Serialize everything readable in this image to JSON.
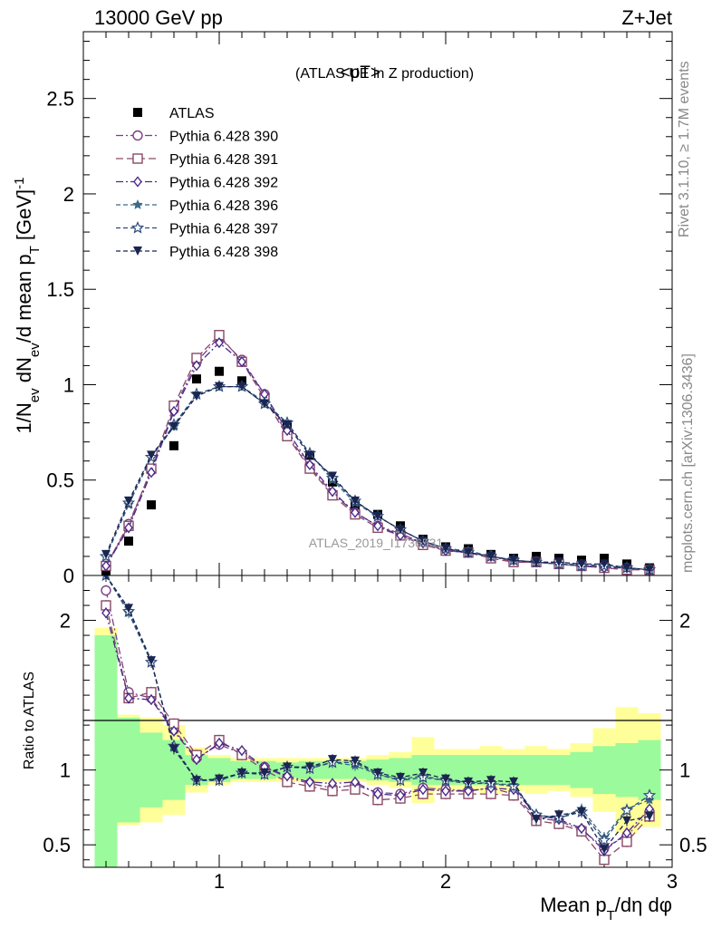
{
  "header": {
    "left": "13000 GeV pp",
    "right": "Z+Jet"
  },
  "side_labels": {
    "rivet": "Rivet 3.1.10, ≥ 1.7M events",
    "mcplots": "mcplots.cern.ch [arXiv:1306.3436]"
  },
  "watermark": "ATLAS_2019_I1736531",
  "colors": {
    "band_inner": "#9bfa9b",
    "band_outer": "#ffff99",
    "data": "#000000"
  },
  "chart_data": [
    {
      "type": "scatter",
      "title": "<pT>",
      "subtitle": "(ATLAS UE in Z production)",
      "xlabel": "Mean p_T/dη dφ",
      "ylabel": "1/N_ev dN_ev/d mean p_T [GeV]^-1",
      "xlim": [
        0.4,
        3.0
      ],
      "ylim": [
        0,
        2.85
      ],
      "xticks": [
        "1",
        "2",
        "3"
      ],
      "yticks": [
        "0",
        "0.5",
        "1",
        "1.5",
        "2",
        "2.5"
      ],
      "x": [
        0.5,
        0.6,
        0.7,
        0.8,
        0.9,
        1.0,
        1.1,
        1.2,
        1.3,
        1.4,
        1.5,
        1.6,
        1.7,
        1.8,
        1.9,
        2.0,
        2.1,
        2.2,
        2.3,
        2.4,
        2.5,
        2.6,
        2.7,
        2.8,
        2.9
      ],
      "legend": [
        "ATLAS",
        "Pythia 6.428 390",
        "Pythia 6.428 391",
        "Pythia 6.428 392",
        "Pythia 6.428 396",
        "Pythia 6.428 397",
        "Pythia 6.428 398"
      ],
      "series": [
        {
          "name": "ATLAS",
          "color": "#000000",
          "marker": "square-filled",
          "values": [
            0.02,
            0.18,
            0.37,
            0.68,
            1.03,
            1.07,
            1.02,
            0.93,
            0.79,
            0.63,
            0.49,
            0.37,
            0.32,
            0.26,
            0.19,
            0.15,
            0.14,
            0.11,
            0.09,
            0.1,
            0.09,
            0.08,
            0.09,
            0.06,
            0.04
          ]
        },
        {
          "name": "Pythia 6.428 390",
          "color": "#7b3f86",
          "marker": "circle-open",
          "dash": "8,3,2,3",
          "values": [
            0.05,
            0.27,
            0.55,
            0.87,
            1.12,
            1.25,
            1.13,
            0.95,
            0.74,
            0.57,
            0.43,
            0.33,
            0.26,
            0.22,
            0.17,
            0.13,
            0.12,
            0.1,
            0.07,
            0.07,
            0.06,
            0.05,
            0.05,
            0.04,
            0.03
          ]
        },
        {
          "name": "Pythia 6.428 391",
          "color": "#8a4a66",
          "marker": "square-open",
          "dash": "8,4",
          "values": [
            0.05,
            0.26,
            0.56,
            0.89,
            1.14,
            1.26,
            1.12,
            0.93,
            0.73,
            0.56,
            0.42,
            0.32,
            0.25,
            0.21,
            0.16,
            0.13,
            0.12,
            0.09,
            0.07,
            0.07,
            0.06,
            0.05,
            0.04,
            0.03,
            0.03
          ]
        },
        {
          "name": "Pythia 6.428 392",
          "color": "#4a2a8c",
          "marker": "diamond-open",
          "dash": "8,3,2,3",
          "values": [
            0.05,
            0.25,
            0.54,
            0.86,
            1.1,
            1.22,
            1.12,
            0.95,
            0.76,
            0.58,
            0.44,
            0.33,
            0.26,
            0.21,
            0.17,
            0.13,
            0.12,
            0.1,
            0.08,
            0.07,
            0.06,
            0.05,
            0.04,
            0.04,
            0.03
          ]
        },
        {
          "name": "Pythia 6.428 396",
          "color": "#3a6a86",
          "marker": "star-filled",
          "dash": "5,3",
          "values": [
            0.1,
            0.37,
            0.62,
            0.78,
            0.95,
            0.99,
            0.99,
            0.91,
            0.8,
            0.64,
            0.5,
            0.38,
            0.31,
            0.24,
            0.18,
            0.14,
            0.13,
            0.1,
            0.08,
            0.07,
            0.06,
            0.06,
            0.05,
            0.04,
            0.03
          ]
        },
        {
          "name": "Pythia 6.428 397",
          "color": "#2c4a7a",
          "marker": "star-open",
          "dash": "5,3",
          "values": [
            0.1,
            0.38,
            0.62,
            0.79,
            0.95,
            0.99,
            0.99,
            0.9,
            0.8,
            0.64,
            0.51,
            0.39,
            0.31,
            0.24,
            0.18,
            0.14,
            0.12,
            0.1,
            0.08,
            0.07,
            0.06,
            0.05,
            0.05,
            0.04,
            0.03
          ]
        },
        {
          "name": "Pythia 6.428 398",
          "color": "#1a2550",
          "marker": "triangle-down-filled",
          "dash": "5,3",
          "values": [
            0.11,
            0.39,
            0.63,
            0.78,
            0.94,
            0.99,
            0.99,
            0.9,
            0.79,
            0.63,
            0.52,
            0.39,
            0.31,
            0.24,
            0.18,
            0.14,
            0.12,
            0.1,
            0.08,
            0.07,
            0.07,
            0.06,
            0.06,
            0.04,
            0.03
          ]
        }
      ]
    },
    {
      "type": "scatter",
      "title": "",
      "xlabel": "Mean p_T/dη dφ",
      "ylabel": "Ratio to ATLAS",
      "xlim": [
        0.4,
        3.0
      ],
      "ylim": [
        0.35,
        2.3
      ],
      "xticks": [
        "1",
        "2",
        "3"
      ],
      "yticks": [
        "0.5",
        "1",
        "2"
      ],
      "x": [
        0.5,
        0.6,
        0.7,
        0.8,
        0.9,
        1.0,
        1.1,
        1.2,
        1.3,
        1.4,
        1.5,
        1.6,
        1.7,
        1.8,
        1.9,
        2.0,
        2.1,
        2.2,
        2.3,
        2.4,
        2.5,
        2.6,
        2.7,
        2.8,
        2.9
      ],
      "reference": 1.0,
      "band_inner_half_width": [
        0.9,
        0.35,
        0.25,
        0.2,
        0.1,
        0.08,
        0.06,
        0.06,
        0.05,
        0.06,
        0.06,
        0.06,
        0.07,
        0.08,
        0.1,
        0.1,
        0.1,
        0.1,
        0.1,
        0.1,
        0.1,
        0.12,
        0.16,
        0.18,
        0.2
      ],
      "band_outer_half_width": [
        0.95,
        0.37,
        0.35,
        0.3,
        0.15,
        0.1,
        0.08,
        0.08,
        0.08,
        0.08,
        0.08,
        0.08,
        0.1,
        0.12,
        0.22,
        0.14,
        0.14,
        0.16,
        0.14,
        0.16,
        0.14,
        0.18,
        0.28,
        0.42,
        0.38
      ],
      "series": [
        {
          "name": "Pythia 6.428 390",
          "values": [
            2.2,
            1.52,
            1.48,
            1.27,
            1.08,
            1.17,
            1.11,
            1.02,
            0.95,
            0.91,
            0.88,
            0.9,
            0.85,
            0.84,
            0.88,
            0.87,
            0.86,
            0.88,
            0.84,
            0.68,
            0.66,
            0.6,
            0.48,
            0.56,
            0.72
          ]
        },
        {
          "name": "Pythia 6.428 391",
          "values": [
            2.1,
            1.48,
            1.52,
            1.31,
            1.1,
            1.2,
            1.1,
            1.0,
            0.92,
            0.89,
            0.86,
            0.87,
            0.8,
            0.81,
            0.84,
            0.84,
            0.84,
            0.84,
            0.83,
            0.66,
            0.64,
            0.59,
            0.4,
            0.52,
            0.69
          ]
        },
        {
          "name": "Pythia 6.428 392",
          "values": [
            2.05,
            1.48,
            1.47,
            1.26,
            1.07,
            1.18,
            1.13,
            1.02,
            0.96,
            0.92,
            0.91,
            0.92,
            0.84,
            0.83,
            0.87,
            0.86,
            0.86,
            0.88,
            0.87,
            0.7,
            0.67,
            0.61,
            0.46,
            0.58,
            0.74
          ]
        },
        {
          "name": "Pythia 6.428 396",
          "values": [
            2.3,
            2.05,
            1.72,
            1.15,
            0.93,
            0.94,
            0.98,
            0.98,
            1.02,
            1.02,
            1.05,
            1.03,
            0.97,
            0.94,
            0.96,
            0.93,
            0.92,
            0.91,
            0.9,
            0.7,
            0.68,
            0.74,
            0.55,
            0.74,
            0.8
          ]
        },
        {
          "name": "Pythia 6.428 397",
          "values": [
            2.3,
            2.06,
            1.72,
            1.16,
            0.93,
            0.93,
            0.98,
            0.97,
            1.02,
            1.01,
            1.05,
            1.05,
            0.97,
            0.93,
            0.95,
            0.93,
            0.91,
            0.91,
            0.89,
            0.7,
            0.68,
            0.72,
            0.53,
            0.73,
            0.83
          ]
        },
        {
          "name": "Pythia 6.428 398",
          "values": [
            2.3,
            2.08,
            1.73,
            1.14,
            0.93,
            0.94,
            0.98,
            0.98,
            1.02,
            1.02,
            1.07,
            1.06,
            0.98,
            0.95,
            0.98,
            0.94,
            0.92,
            0.93,
            0.92,
            0.67,
            0.7,
            0.72,
            0.47,
            0.66,
            0.69
          ]
        }
      ]
    }
  ]
}
